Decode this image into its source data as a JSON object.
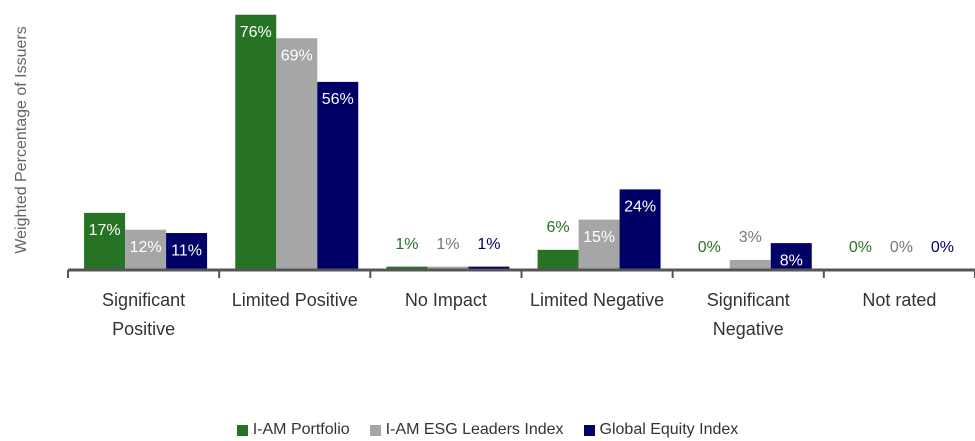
{
  "chart_data": {
    "type": "bar",
    "y_label": "Weighted Percentage of Issuers",
    "categories": [
      "Significant Positive",
      "Limited Positive",
      "No Impact",
      "Limited Negative",
      "Significant Negative",
      "Not rated"
    ],
    "series": [
      {
        "name": "I-AM Portfolio",
        "color": "#267326",
        "values": [
          17,
          76,
          1,
          6,
          0,
          0
        ],
        "value_labels": [
          "17%",
          "76%",
          "1%",
          "6%",
          "0%",
          "0%"
        ]
      },
      {
        "name": "I-AM ESG Leaders Index",
        "color": "#a6a6a6",
        "values": [
          12,
          69,
          1,
          15,
          3,
          0
        ],
        "value_labels": [
          "12%",
          "69%",
          "1%",
          "15%",
          "3%",
          "0%"
        ]
      },
      {
        "name": "Global Equity Index",
        "color": "#000066",
        "values": [
          11,
          56,
          1,
          24,
          8,
          0
        ],
        "value_labels": [
          "11%",
          "56%",
          "1%",
          "24%",
          "8%",
          "0%"
        ]
      }
    ],
    "ylim": [
      0,
      78
    ],
    "legend": "bottom"
  }
}
